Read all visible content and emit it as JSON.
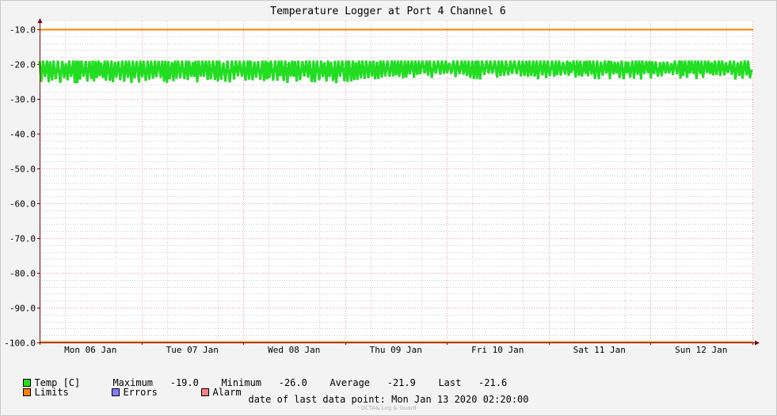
{
  "chart_data": {
    "type": "line",
    "title": "Temperature Logger at Port 4 Channel 6",
    "xlabel": "",
    "ylabel": "",
    "ylim": [
      -100,
      -10
    ],
    "yticks": [
      -10.0,
      -20.0,
      -30.0,
      -40.0,
      -50.0,
      -60.0,
      -70.0,
      -80.0,
      -90.0,
      -100.0
    ],
    "ytick_labels": [
      "-10.0",
      "-20.0",
      "-30.0",
      "-40.0",
      "-50.0",
      "-60.0",
      "-70.0",
      "-80.0",
      "-90.0",
      "-100.0"
    ],
    "x_start": "2020-01-06",
    "x_end": "2020-01-13 02:20:00",
    "xtick_labels": [
      "Mon 06 Jan",
      "Tue 07 Jan",
      "Wed 08 Jan",
      "Thu 09 Jan",
      "Fri 10 Jan",
      "Sat 11 Jan",
      "Sun 12 Jan"
    ],
    "grid": true,
    "limits": {
      "upper": -10.0,
      "lower": -100.0
    },
    "series": [
      {
        "name": "Temp [C]",
        "min": -26.0,
        "max": -19.0,
        "avg": -21.9,
        "last": -21.6,
        "color": "#00ee00"
      }
    ]
  },
  "colors": {
    "temp": "#22dd22",
    "limits": "#ff7f00",
    "errors": "#7f7fff",
    "alarm": "#ff7f7f",
    "grid_major": "#e8a0a0",
    "grid_minor": "#cccccc",
    "background": "#ffffff",
    "axis": "#800000"
  },
  "legend": {
    "temp_label": "Temp [C]",
    "maximum_label": "Maximum",
    "maximum_value": "-19.0",
    "minimum_label": "Minimum",
    "minimum_value": "-26.0",
    "average_label": "Average",
    "average_value": "-21.9",
    "last_label": "Last",
    "last_value": "-21.6",
    "limits_label": "Limits",
    "errors_label": "Errors",
    "alarm_label": "Alarm"
  },
  "footer": {
    "last_point_label": "date of last data point:",
    "last_point_value": "Mon Jan 13 2020 02:20:00",
    "watermark": "OCTA& Log & Guard"
  }
}
